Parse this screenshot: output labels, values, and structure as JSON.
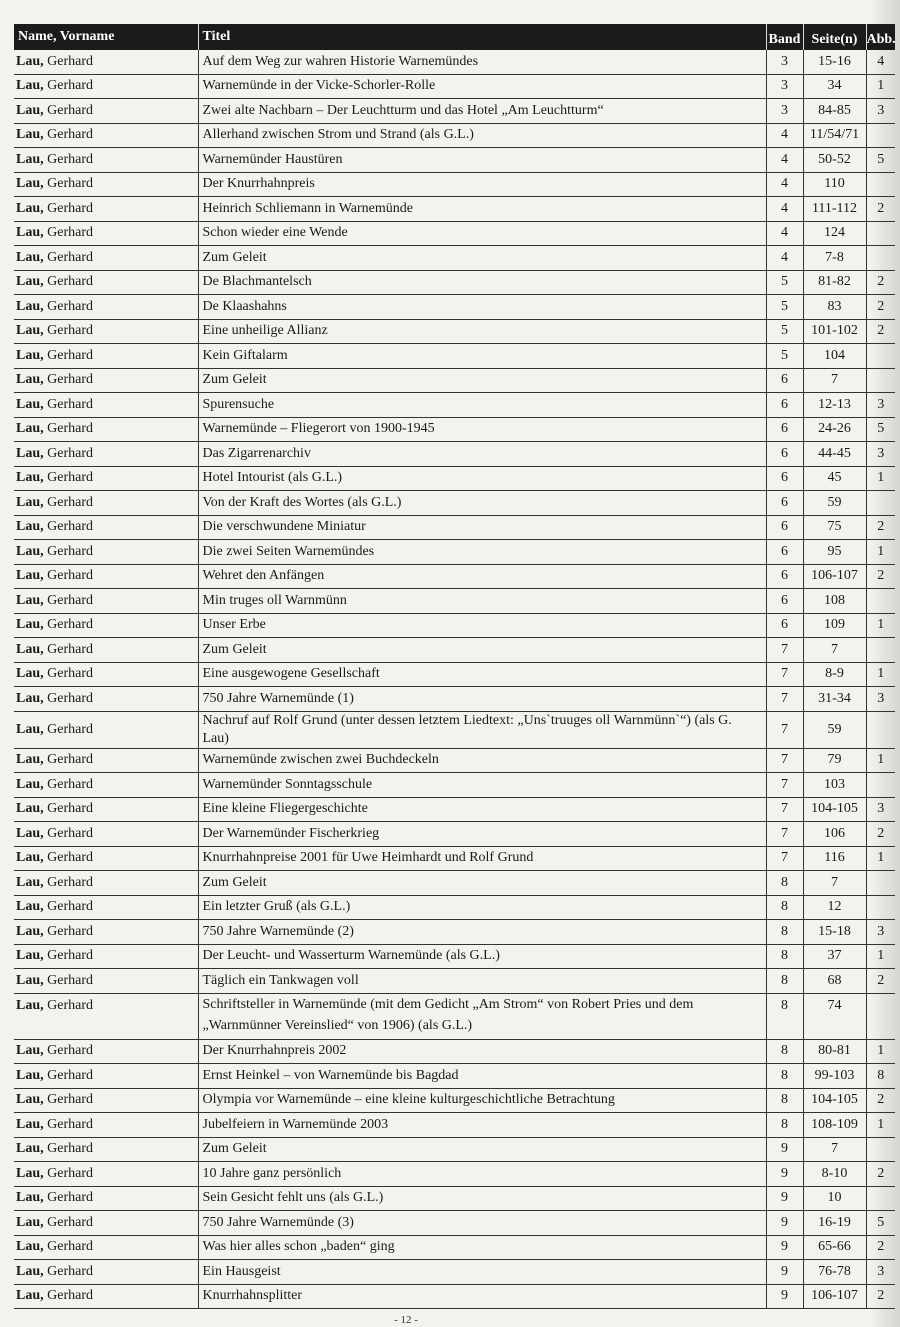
{
  "header": {
    "name": "Name, Vorname",
    "title": "Titel",
    "band": "Band",
    "pages": "Seite(n)",
    "figs": "Abb."
  },
  "rows": [
    {
      "surname": "Lau,",
      "firstname": " Gerhard",
      "title": "Auf dem Weg zur wahren Historie Warnemündes",
      "band": "3",
      "pages": "15-16",
      "figs": "4"
    },
    {
      "surname": "Lau,",
      "firstname": " Gerhard",
      "title": "Warnemünde in der Vicke-Schorler-Rolle",
      "band": "3",
      "pages": "34",
      "figs": "1"
    },
    {
      "surname": "Lau,",
      "firstname": " Gerhard",
      "title": "Zwei alte Nachbarn – Der Leuchtturm und das Hotel „Am Leuchtturm“",
      "band": "3",
      "pages": "84-85",
      "figs": "3"
    },
    {
      "surname": "Lau,",
      "firstname": " Gerhard",
      "title": "Allerhand zwischen Strom und Strand (als G.L.)",
      "band": "4",
      "pages": "11/54/71",
      "figs": ""
    },
    {
      "surname": "Lau,",
      "firstname": " Gerhard",
      "title": "Warnemünder Haustüren",
      "band": "4",
      "pages": "50-52",
      "figs": "5"
    },
    {
      "surname": "Lau,",
      "firstname": " Gerhard",
      "title": "Der Knurrhahnpreis",
      "band": "4",
      "pages": "110",
      "figs": ""
    },
    {
      "surname": "Lau,",
      "firstname": " Gerhard",
      "title": "Heinrich Schliemann in Warnemünde",
      "band": "4",
      "pages": "111-112",
      "figs": "2"
    },
    {
      "surname": "Lau,",
      "firstname": " Gerhard",
      "title": "Schon wieder eine Wende",
      "band": "4",
      "pages": "124",
      "figs": ""
    },
    {
      "surname": "Lau,",
      "firstname": " Gerhard",
      "title": "Zum Geleit",
      "band": "4",
      "pages": "7-8",
      "figs": ""
    },
    {
      "surname": "Lau,",
      "firstname": " Gerhard",
      "title": "De Blachmantelsch",
      "band": "5",
      "pages": "81-82",
      "figs": "2"
    },
    {
      "surname": "Lau,",
      "firstname": " Gerhard",
      "title": "De Klaashahns",
      "band": "5",
      "pages": "83",
      "figs": "2"
    },
    {
      "surname": "Lau,",
      "firstname": " Gerhard",
      "title": "Eine unheilige Allianz",
      "band": "5",
      "pages": "101-102",
      "figs": "2"
    },
    {
      "surname": "Lau,",
      "firstname": " Gerhard",
      "title": "Kein Giftalarm",
      "band": "5",
      "pages": "104",
      "figs": ""
    },
    {
      "surname": "Lau,",
      "firstname": " Gerhard",
      "title": "Zum Geleit",
      "band": "6",
      "pages": "7",
      "figs": ""
    },
    {
      "surname": "Lau,",
      "firstname": " Gerhard",
      "title": "Spurensuche",
      "band": "6",
      "pages": "12-13",
      "figs": "3"
    },
    {
      "surname": "Lau,",
      "firstname": " Gerhard",
      "title": "Warnemünde – Fliegerort von 1900-1945",
      "band": "6",
      "pages": "24-26",
      "figs": "5"
    },
    {
      "surname": "Lau,",
      "firstname": " Gerhard",
      "title": "Das Zigarrenarchiv",
      "band": "6",
      "pages": "44-45",
      "figs": "3"
    },
    {
      "surname": "Lau,",
      "firstname": " Gerhard",
      "title": "Hotel Intourist (als G.L.)",
      "band": "6",
      "pages": "45",
      "figs": "1"
    },
    {
      "surname": "Lau,",
      "firstname": " Gerhard",
      "title": "Von der Kraft des Wortes (als G.L.)",
      "band": "6",
      "pages": "59",
      "figs": ""
    },
    {
      "surname": "Lau,",
      "firstname": " Gerhard",
      "title": "Die verschwundene Miniatur",
      "band": "6",
      "pages": "75",
      "figs": "2"
    },
    {
      "surname": "Lau,",
      "firstname": " Gerhard",
      "title": "Die zwei Seiten Warnemündes",
      "band": "6",
      "pages": "95",
      "figs": "1"
    },
    {
      "surname": "Lau,",
      "firstname": " Gerhard",
      "title": "Wehret den Anfängen",
      "band": "6",
      "pages": "106-107",
      "figs": "2"
    },
    {
      "surname": "Lau,",
      "firstname": " Gerhard",
      "title": "Min truges oll Warnmünn",
      "band": "6",
      "pages": "108",
      "figs": ""
    },
    {
      "surname": "Lau,",
      "firstname": " Gerhard",
      "title": "Unser Erbe",
      "band": "6",
      "pages": "109",
      "figs": "1"
    },
    {
      "surname": "Lau,",
      "firstname": " Gerhard",
      "title": "Zum Geleit",
      "band": "7",
      "pages": "7",
      "figs": ""
    },
    {
      "surname": "Lau,",
      "firstname": " Gerhard",
      "title": "Eine ausgewogene Gesellschaft",
      "band": "7",
      "pages": "8-9",
      "figs": "1"
    },
    {
      "surname": "Lau,",
      "firstname": " Gerhard",
      "title": "750 Jahre Warnemünde (1)",
      "band": "7",
      "pages": "31-34",
      "figs": "3"
    },
    {
      "surname": "Lau,",
      "firstname": " Gerhard",
      "title": "Nachruf auf Rolf Grund (unter dessen letztem Liedtext: „Uns`truuges oll Warnmünn`“) (als G. Lau)",
      "band": "7",
      "pages": "59",
      "figs": ""
    },
    {
      "surname": "Lau,",
      "firstname": " Gerhard",
      "title": "Warnemünde zwischen zwei Buchdeckeln",
      "band": "7",
      "pages": "79",
      "figs": "1"
    },
    {
      "surname": "Lau,",
      "firstname": " Gerhard",
      "title": "Warnemünder Sonntagsschule",
      "band": "7",
      "pages": "103",
      "figs": ""
    },
    {
      "surname": "Lau,",
      "firstname": " Gerhard",
      "title": "Eine kleine Fliegergeschichte",
      "band": "7",
      "pages": "104-105",
      "figs": "3"
    },
    {
      "surname": "Lau,",
      "firstname": " Gerhard",
      "title": "Der Warnemünder Fischerkrieg",
      "band": "7",
      "pages": "106",
      "figs": "2"
    },
    {
      "surname": "Lau,",
      "firstname": " Gerhard",
      "title": "Knurrhahnpreise 2001 für Uwe Heimhardt und Rolf Grund",
      "band": "7",
      "pages": "116",
      "figs": "1"
    },
    {
      "surname": "Lau,",
      "firstname": " Gerhard",
      "title": "Zum Geleit",
      "band": "8",
      "pages": "7",
      "figs": ""
    },
    {
      "surname": "Lau,",
      "firstname": " Gerhard",
      "title": "Ein letzter Gruß (als G.L.)",
      "band": "8",
      "pages": "12",
      "figs": ""
    },
    {
      "surname": "Lau,",
      "firstname": " Gerhard",
      "title": "750 Jahre Warnemünde (2)",
      "band": "8",
      "pages": "15-18",
      "figs": "3"
    },
    {
      "surname": "Lau,",
      "firstname": " Gerhard",
      "title": "Der Leucht- und Wasserturm Warnemünde (als G.L.)",
      "band": "8",
      "pages": "37",
      "figs": "1"
    },
    {
      "surname": "Lau,",
      "firstname": " Gerhard",
      "title": "Täglich ein Tankwagen voll",
      "band": "8",
      "pages": "68",
      "figs": "2"
    },
    {
      "surname": "Lau,",
      "firstname": " Gerhard",
      "title": "Schriftsteller in Warnemünde (mit dem Gedicht „Am Strom“ von Robert Pries und dem „Warnmünner Vereinslied“ von 1906) (als G.L.)",
      "band": "8",
      "pages": "74",
      "figs": "",
      "multi": true
    },
    {
      "surname": "Lau,",
      "firstname": " Gerhard",
      "title": "Der Knurrhahnpreis 2002",
      "band": "8",
      "pages": "80-81",
      "figs": "1"
    },
    {
      "surname": "Lau,",
      "firstname": " Gerhard",
      "title": "Ernst Heinkel – von Warnemünde bis Bagdad",
      "band": "8",
      "pages": "99-103",
      "figs": "8"
    },
    {
      "surname": "Lau,",
      "firstname": " Gerhard",
      "title": "Olympia vor Warnemünde – eine kleine kulturgeschichtliche Betrachtung",
      "band": "8",
      "pages": "104-105",
      "figs": "2"
    },
    {
      "surname": "Lau,",
      "firstname": " Gerhard",
      "title": "Jubelfeiern in Warnemünde 2003",
      "band": "8",
      "pages": "108-109",
      "figs": "1"
    },
    {
      "surname": "Lau,",
      "firstname": " Gerhard",
      "title": "Zum Geleit",
      "band": "9",
      "pages": "7",
      "figs": ""
    },
    {
      "surname": "Lau,",
      "firstname": " Gerhard",
      "title": "10 Jahre ganz persönlich",
      "band": "9",
      "pages": "8-10",
      "figs": "2"
    },
    {
      "surname": "Lau,",
      "firstname": " Gerhard",
      "title": "Sein Gesicht fehlt uns (als G.L.)",
      "band": "9",
      "pages": "10",
      "figs": ""
    },
    {
      "surname": "Lau,",
      "firstname": " Gerhard",
      "title": "750 Jahre Warnemünde (3)",
      "band": "9",
      "pages": "16-19",
      "figs": "5"
    },
    {
      "surname": "Lau,",
      "firstname": " Gerhard",
      "title": "Was hier alles schon „baden“ ging",
      "band": "9",
      "pages": "65-66",
      "figs": "2"
    },
    {
      "surname": "Lau,",
      "firstname": " Gerhard",
      "title": "Ein Hausgeist",
      "band": "9",
      "pages": "76-78",
      "figs": "3"
    },
    {
      "surname": "Lau,",
      "firstname": " Gerhard",
      "title": "Knurrhahnsplitter",
      "band": "9",
      "pages": "106-107",
      "figs": "2"
    }
  ],
  "footer": {
    "page_number": "- 12 -"
  }
}
